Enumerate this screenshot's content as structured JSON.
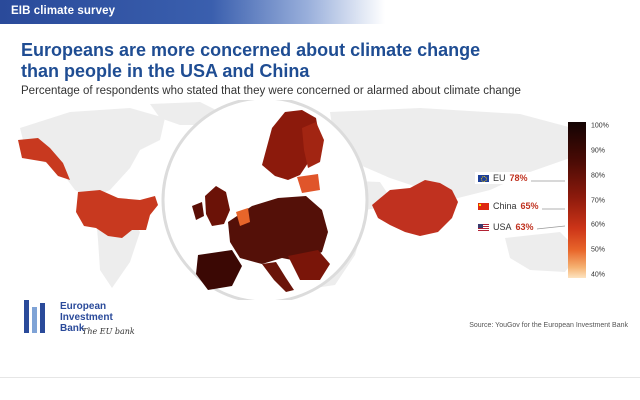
{
  "header": {
    "banner": "EIB climate survey"
  },
  "chart_data": {
    "type": "choropleth-map",
    "title": "Europeans are more concerned about climate change than people in the USA and China",
    "subtitle": "Percentage of respondents who stated that they were concerned or alarmed about climate change",
    "highlights": [
      {
        "name": "EU",
        "value": 78,
        "label": "78%",
        "flag": "eu-flag-icon",
        "color": "#7a1509"
      },
      {
        "name": "China",
        "value": 65,
        "label": "65%",
        "flag": "china-flag-icon",
        "color": "#c0311f"
      },
      {
        "name": "USA",
        "value": 63,
        "label": "63%",
        "flag": "usa-flag-icon",
        "color": "#c8391f"
      }
    ],
    "scale": {
      "min": 40,
      "max": 100,
      "ticks": [
        {
          "value": 100,
          "label": "100%"
        },
        {
          "value": 90,
          "label": "90%"
        },
        {
          "value": 80,
          "label": "80%"
        },
        {
          "value": 70,
          "label": "70%"
        },
        {
          "value": 60,
          "label": "60%"
        },
        {
          "value": 50,
          "label": "50%"
        },
        {
          "value": 40,
          "label": "40%"
        }
      ],
      "color_low": "#fde3c0",
      "color_high": "#130303"
    }
  },
  "branding": {
    "logo_line1": "European",
    "logo_line2": "Investment",
    "logo_line3": "Bank",
    "tagline": "The EU bank",
    "logo_colors": [
      "#2a4a9a",
      "#7fa3d6",
      "#2a4a9a"
    ]
  },
  "footer": {
    "source": "Source: YouGov for the European Investment Bank"
  }
}
